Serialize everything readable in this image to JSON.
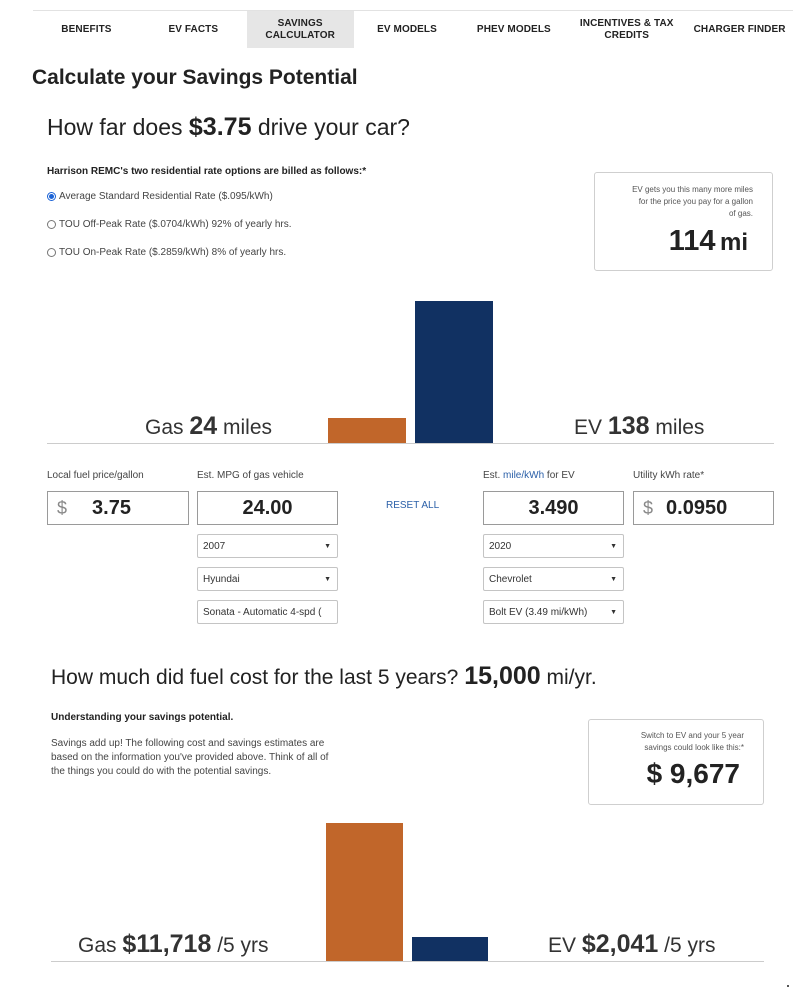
{
  "nav": {
    "tabs": [
      "BENEFITS",
      "EV FACTS",
      "SAVINGS CALCULATOR",
      "EV MODELS",
      "PHEV MODELS",
      "INCENTIVES & TAX CREDITS",
      "CHARGER FINDER"
    ],
    "active": "SAVINGS CALCULATOR"
  },
  "page_title": "Calculate your Savings Potential",
  "distance": {
    "question_pre": "How far does",
    "price": "$3.75",
    "question_post": "drive your car?",
    "rate_heading": "Harrison REMC's two residential rate options are billed as follows:*",
    "rate_options": [
      {
        "label": "Average Standard Residential Rate ($.095/kWh)",
        "checked": true
      },
      {
        "label": "TOU Off-Peak Rate ($.0704/kWh) 92% of yearly hrs.",
        "checked": false
      },
      {
        "label": "TOU On-Peak Rate ($.2859/kWh) 8% of yearly hrs.",
        "checked": false
      }
    ],
    "ev_box": {
      "note_lines": [
        "EV gets you this many more miles",
        "for the price you pay for a gallon",
        "of gas."
      ],
      "value": "114",
      "unit": "mi"
    },
    "gas_label": "Gas",
    "gas_value": "24",
    "gas_unit": "miles",
    "ev_label": "EV",
    "ev_value": "138",
    "ev_unit": "miles",
    "gas_miles": 24,
    "ev_miles": 138
  },
  "inputs": {
    "fuel_price_label": "Local fuel price/gallon",
    "fuel_price_currency": "$",
    "fuel_price": "3.75",
    "mpg_label": "Est. MPG of gas vehicle",
    "mpg": "24.00",
    "reset_label": "RESET ALL",
    "ev_eff_label_pre": "Est.",
    "ev_eff_label_link": "mile/kWh",
    "ev_eff_label_post": "for EV",
    "ev_eff": "3.490",
    "utility_label": "Utility kWh rate*",
    "utility_currency": "$",
    "utility_rate": "0.0950",
    "gas_year": "2007",
    "gas_make": "Hyundai",
    "gas_model": "Sonata - Automatic 4-spd (",
    "ev_year": "2020",
    "ev_make": "Chevrolet",
    "ev_model": "Bolt EV (3.49 mi/kWh)"
  },
  "cost": {
    "question_pre": "How much did fuel cost for the last 5 years?",
    "miles": "15,000",
    "miles_unit": "mi/yr.",
    "under_heading": "Understanding your savings potential.",
    "savings_text": "Savings add up! The following cost and savings estimates are based on the information you've provided above. Think of all of the things you could do with the potential savings.",
    "savings_box": {
      "note_lines": [
        "Switch to EV and your 5 year",
        "savings could look like this:*"
      ],
      "value": "$ 9,677"
    },
    "gas_label": "Gas",
    "gas_value": "$11,718",
    "gas_unit": "/5 yrs",
    "ev_label": "EV",
    "ev_value": "$2,041",
    "ev_unit": "/5 yrs",
    "gas_cost": 11718,
    "ev_cost": 2041
  },
  "colors": {
    "gas": "#c1662a",
    "ev": "#113162",
    "link": "#2a5fa8"
  }
}
